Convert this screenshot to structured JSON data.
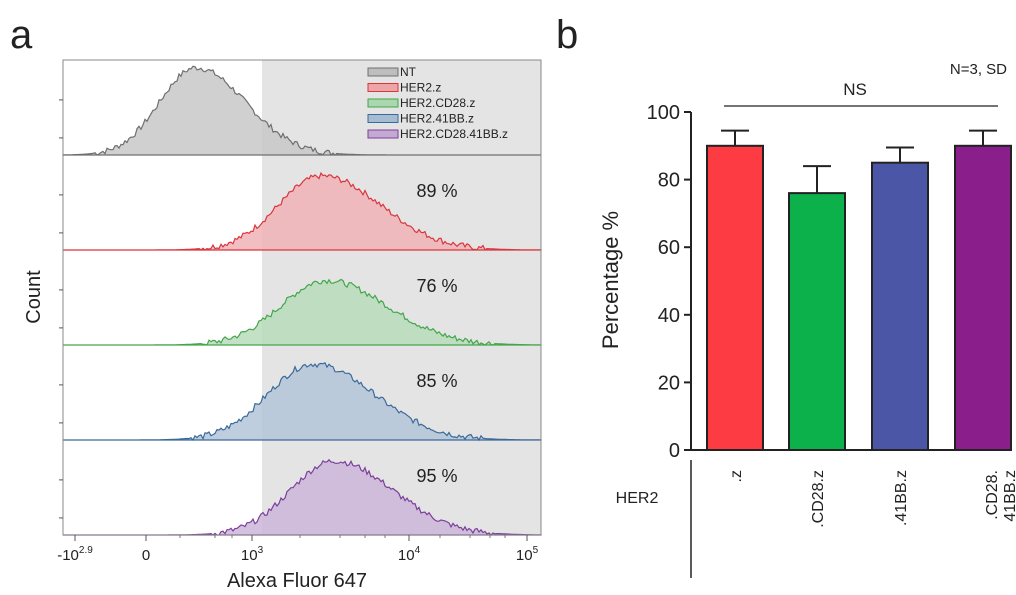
{
  "chart_data": [
    {
      "type": "histogram",
      "panel_label": "a",
      "xlabel": "Alexa Fluor 647",
      "ylabel": "Count",
      "xscale": "biexponential (log)",
      "x_ticks": [
        "-10^2.9",
        "0",
        "10^3",
        "10^4",
        "10^5"
      ],
      "gate_start": "~1.2x10^3",
      "gate_color": "#e4e4e4",
      "legend_position": "top-right",
      "series": [
        {
          "name": "NT",
          "color": "#6f6f6f",
          "peak_x": "~4x10^2",
          "label": ""
        },
        {
          "name": "HER2.z",
          "color": "#d9363e",
          "peak_x": "~3x10^3",
          "label": "89 %"
        },
        {
          "name": "HER2.CD28.z",
          "color": "#43a64b",
          "peak_x": "~3x10^3",
          "label": "76 %"
        },
        {
          "name": "HER2.41BB.z",
          "color": "#3a6a9a",
          "peak_x": "~2.5x10^3",
          "label": "85 %"
        },
        {
          "name": "HER2.CD28.41BB.z",
          "color": "#7b3f9a",
          "peak_x": "~3.5x10^3",
          "label": "95 %"
        }
      ]
    },
    {
      "type": "bar",
      "panel_label": "b",
      "annotation": "N=3, SD",
      "significance": "NS",
      "ylabel": "Percentage %",
      "ylim": [
        0,
        100
      ],
      "yticks": [
        0,
        20,
        40,
        60,
        80,
        100
      ],
      "group_label": "HER2",
      "categories": [
        ".z",
        ".CD28.z",
        ".41BB.z",
        ".CD28.\n41BB.z"
      ],
      "values": [
        90,
        76,
        85,
        90
      ],
      "errors": [
        4.5,
        8,
        4.5,
        4.5
      ],
      "colors": [
        "#fc3b42",
        "#0cb14b",
        "#4b56a6",
        "#8a1f8c"
      ]
    }
  ]
}
